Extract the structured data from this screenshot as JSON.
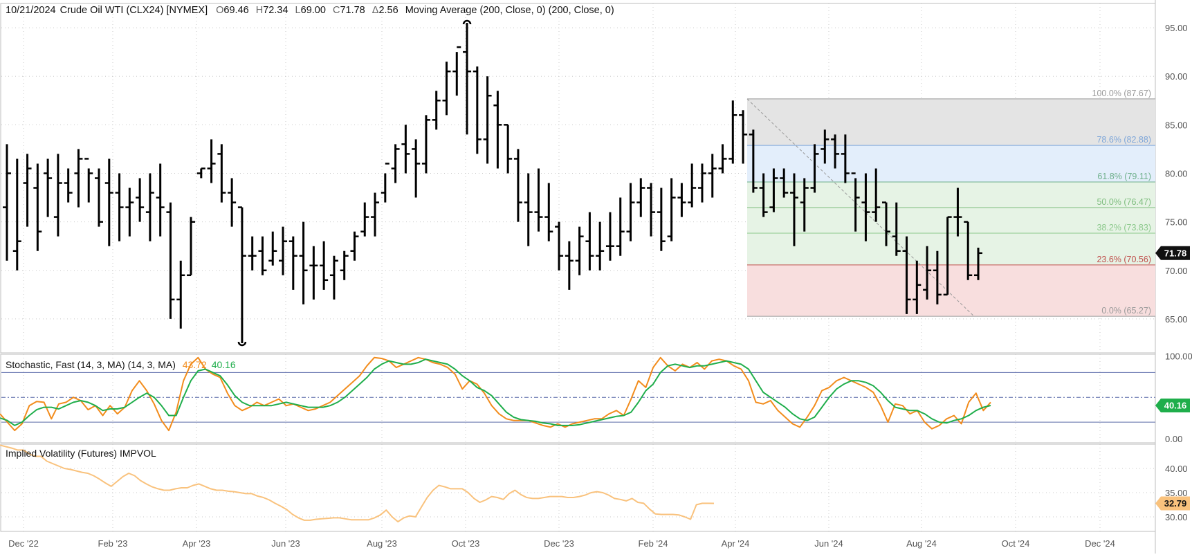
{
  "header": {
    "date": "10/21/2024",
    "symbol": "Crude Oil WTI (CLX24) [NYMEX]",
    "ohlc": [
      {
        "label": "O",
        "value": "69.46"
      },
      {
        "label": "H",
        "value": "72.34"
      },
      {
        "label": "L",
        "value": "69.00"
      },
      {
        "label": "C",
        "value": "71.78"
      },
      {
        "label": "Δ",
        "value": "2.56"
      }
    ],
    "study": "Moving Average (200, Close, 0)  (200, Close, 0)"
  },
  "colors": {
    "bars": "#000000",
    "k_line": "#f28c1c",
    "d_line": "#1fae4b",
    "iv_line": "#f9c27d",
    "grid": "#c8c8c8",
    "fib_high_zone": "#e4e4e4",
    "fib_786_zone": "#e3eefb",
    "fib_mid_zone": "#e6f3e5",
    "fib_low_zone": "#f8dede",
    "price_badge": "#111111",
    "d_badge": "#1fae4b",
    "iv_badge": "#f9c27d"
  },
  "chart_data": [
    {
      "type": "ohlc",
      "name": "price",
      "x_labels": [
        "Dec '22",
        "Feb '23",
        "Apr '23",
        "Jun '23",
        "Aug '23",
        "Oct '23",
        "Dec '23",
        "Feb '24",
        "Apr '24",
        "Jun '24",
        "Aug '24",
        "Oct '24",
        "Dec '24"
      ],
      "y_ticks": [
        "95.00",
        "90.00",
        "85.00",
        "80.00",
        "75.00",
        "70.00",
        "65.00"
      ],
      "ylim": [
        61.5,
        97.5
      ],
      "last_price": "71.78",
      "bars": [
        [
          76.5,
          83.0,
          71.0,
          80.0
        ],
        [
          72.0,
          81.5,
          70.0,
          73.0
        ],
        [
          79.0,
          82.0,
          74.5,
          80.5
        ],
        [
          78.5,
          81.0,
          72.0,
          74.0
        ],
        [
          80.0,
          81.5,
          75.5,
          79.5
        ],
        [
          75.5,
          82.0,
          73.5,
          79.0
        ],
        [
          79.0,
          80.5,
          77.0,
          78.0
        ],
        [
          80.0,
          82.5,
          76.5,
          81.5
        ],
        [
          81.5,
          80.5,
          77.0,
          80.0
        ],
        [
          79.5,
          80.5,
          74.5,
          75.0
        ],
        [
          79.0,
          81.5,
          72.5,
          78.0
        ],
        [
          78.0,
          80.0,
          73.0,
          76.5
        ],
        [
          76.5,
          78.5,
          73.5,
          77.0
        ],
        [
          77.5,
          79.5,
          75.0,
          76.5
        ],
        [
          76.0,
          80.0,
          73.0,
          78.0
        ],
        [
          77.5,
          81.0,
          73.5,
          76.5
        ],
        [
          76.0,
          77.0,
          65.0,
          67.0
        ],
        [
          67.0,
          71.0,
          64.0,
          69.5
        ],
        [
          69.5,
          75.5,
          69.5,
          75.0
        ],
        [
          80.0,
          80.5,
          79.5,
          80.5
        ],
        [
          80.5,
          83.5,
          79.0,
          81.0
        ],
        [
          82.0,
          83.0,
          77.0,
          78.0
        ],
        [
          78.0,
          79.5,
          74.5,
          77.0
        ],
        [
          76.5,
          76.5,
          62.5,
          71.5
        ],
        [
          71.5,
          73.5,
          70.0,
          71.5
        ],
        [
          72.0,
          73.5,
          69.5,
          70.0
        ],
        [
          71.0,
          74.0,
          70.5,
          72.0
        ],
        [
          71.0,
          74.5,
          69.5,
          73.0
        ],
        [
          73.0,
          73.5,
          68.0,
          71.5
        ],
        [
          71.5,
          75.0,
          66.5,
          70.0
        ],
        [
          70.5,
          72.5,
          67.0,
          70.5
        ],
        [
          70.5,
          73.0,
          68.0,
          69.0
        ],
        [
          69.5,
          71.5,
          67.0,
          71.0
        ],
        [
          70.0,
          72.0,
          69.0,
          71.5
        ],
        [
          72.0,
          74.0,
          71.0,
          73.5
        ],
        [
          74.0,
          77.0,
          73.5,
          75.5
        ],
        [
          75.5,
          78.0,
          73.5,
          77.0
        ],
        [
          78.0,
          80.0,
          77.0,
          81.0
        ],
        [
          80.5,
          83.0,
          79.0,
          82.5
        ],
        [
          83.0,
          85.0,
          80.0,
          82.0
        ],
        [
          82.5,
          83.5,
          77.5,
          81.0
        ],
        [
          81.0,
          86.0,
          80.0,
          85.5
        ],
        [
          85.5,
          88.5,
          84.5,
          87.5
        ],
        [
          87.5,
          91.5,
          86.0,
          90.5
        ],
        [
          90.5,
          92.5,
          88.0,
          93.0
        ],
        [
          92.5,
          95.5,
          84.0,
          90.5
        ],
        [
          90.5,
          91.0,
          82.0,
          83.5
        ],
        [
          83.5,
          90.0,
          81.0,
          88.0
        ],
        [
          87.0,
          88.5,
          80.5,
          85.0
        ],
        [
          85.0,
          85.0,
          80.0,
          81.5
        ],
        [
          81.5,
          82.5,
          75.0,
          77.0
        ],
        [
          77.0,
          80.0,
          72.5,
          76.0
        ],
        [
          76.0,
          80.5,
          74.0,
          75.5
        ],
        [
          75.5,
          79.0,
          73.0,
          74.0
        ],
        [
          74.5,
          75.0,
          70.0,
          71.5
        ],
        [
          71.5,
          73.0,
          68.0,
          71.0
        ],
        [
          71.0,
          74.5,
          69.5,
          73.5
        ],
        [
          73.0,
          76.0,
          70.0,
          71.5
        ],
        [
          71.5,
          75.0,
          70.0,
          72.0
        ],
        [
          72.5,
          76.0,
          71.0,
          72.5
        ],
        [
          72.5,
          77.5,
          71.5,
          74.0
        ],
        [
          74.0,
          79.0,
          73.0,
          77.0
        ],
        [
          77.0,
          79.5,
          75.5,
          78.5
        ],
        [
          78.5,
          79.0,
          73.5,
          76.0
        ],
        [
          76.0,
          78.5,
          72.0,
          73.0
        ],
        [
          73.5,
          79.5,
          73.0,
          77.5
        ],
        [
          77.5,
          79.0,
          75.5,
          77.0
        ],
        [
          77.0,
          81.0,
          76.5,
          78.5
        ],
        [
          78.5,
          81.0,
          77.0,
          80.0
        ],
        [
          80.0,
          82.0,
          77.5,
          80.5
        ],
        [
          80.5,
          83.0,
          80.0,
          81.5
        ],
        [
          81.5,
          87.5,
          81.0,
          86.0
        ],
        [
          86.0,
          86.5,
          81.0,
          84.0
        ],
        [
          84.0,
          84.5,
          78.0,
          78.5
        ],
        [
          78.5,
          80.0,
          75.5,
          76.0
        ],
        [
          76.5,
          80.5,
          76.0,
          79.5
        ],
        [
          79.5,
          80.5,
          77.5,
          78.0
        ],
        [
          78.0,
          80.0,
          72.5,
          77.5
        ],
        [
          77.0,
          79.5,
          74.0,
          78.5
        ],
        [
          78.5,
          83.0,
          78.0,
          82.0
        ],
        [
          82.5,
          84.5,
          81.0,
          83.5
        ],
        [
          83.5,
          84.0,
          80.5,
          82.0
        ],
        [
          82.0,
          84.0,
          79.0,
          80.0
        ],
        [
          80.0,
          79.5,
          74.0,
          77.5
        ],
        [
          77.0,
          80.0,
          73.0,
          76.0
        ],
        [
          76.0,
          80.5,
          75.0,
          76.5
        ],
        [
          77.0,
          77.0,
          72.5,
          74.0
        ],
        [
          73.5,
          77.0,
          71.5,
          72.0
        ],
        [
          72.0,
          73.5,
          65.5,
          67.0
        ],
        [
          67.0,
          71.0,
          65.5,
          68.5
        ],
        [
          68.0,
          72.5,
          67.0,
          70.0
        ],
        [
          70.0,
          72.0,
          66.5,
          67.5
        ],
        [
          67.5,
          75.5,
          67.5,
          75.5
        ],
        [
          75.5,
          78.5,
          73.5,
          75.5
        ],
        [
          75.0,
          75.0,
          69.0,
          69.5
        ],
        [
          69.5,
          72.34,
          69.0,
          71.78
        ]
      ],
      "fibonacci": [
        {
          "label": "100.0% (87.67)",
          "value": 87.67,
          "color": "#9a9a9a"
        },
        {
          "label": "78.6% (82.88)",
          "value": 82.88,
          "color": "#7fa7d9"
        },
        {
          "label": "61.8% (79.11)",
          "value": 79.11,
          "color": "#6daf8a"
        },
        {
          "label": "50.0% (76.47)",
          "value": 76.47,
          "color": "#7dbd7d"
        },
        {
          "label": "38.2% (73.83)",
          "value": 73.83,
          "color": "#8cc98c"
        },
        {
          "label": "23.6% (70.56)",
          "value": 70.56,
          "color": "#c0504d"
        },
        {
          "label": "0.0% (65.27)",
          "value": 65.27,
          "color": "#9a9a9a"
        }
      ]
    },
    {
      "type": "line",
      "name": "stochastic",
      "title": "Stochastic, Fast (14, 3, MA)  (14, 3, MA)",
      "k_value": "43.72",
      "d_value": "40.16",
      "y_ticks": [
        "100.00",
        "0.00"
      ],
      "ylim": [
        -5,
        102
      ],
      "levels": [
        80,
        50,
        20
      ],
      "series": [
        {
          "name": "%K",
          "values": [
            30,
            20,
            10,
            18,
            40,
            45,
            44,
            24,
            42,
            44,
            50,
            46,
            35,
            40,
            28,
            40,
            30,
            38,
            58,
            70,
            58,
            42,
            22,
            10,
            32,
            70,
            90,
            98,
            84,
            78,
            74,
            55,
            40,
            34,
            38,
            44,
            40,
            44,
            48,
            40,
            42,
            38,
            34,
            36,
            40,
            44,
            52,
            60,
            68,
            76,
            88,
            98,
            97,
            94,
            86,
            90,
            94,
            98,
            96,
            92,
            90,
            86,
            78,
            60,
            70,
            66,
            55,
            40,
            30,
            24,
            22,
            22,
            22,
            19,
            16,
            14,
            18,
            14,
            18,
            20,
            22,
            24,
            24,
            30,
            34,
            28,
            48,
            70,
            62,
            86,
            98,
            88,
            82,
            90,
            86,
            92,
            84,
            94,
            96,
            94,
            88,
            84,
            70,
            44,
            42,
            46,
            34,
            26,
            18,
            14,
            26,
            40,
            58,
            62,
            70,
            74,
            70,
            66,
            62,
            56,
            40,
            20,
            42,
            40,
            30,
            34,
            20,
            12,
            16,
            24,
            28,
            18,
            44,
            55,
            34,
            44
          ]
        },
        {
          "name": "%D",
          "values": [
            25,
            22,
            16,
            20,
            28,
            35,
            38,
            38,
            36,
            40,
            44,
            46,
            44,
            40,
            34,
            36,
            36,
            38,
            44,
            50,
            55,
            50,
            40,
            28,
            28,
            50,
            70,
            82,
            84,
            80,
            76,
            65,
            52,
            44,
            40,
            40,
            40,
            40,
            42,
            44,
            42,
            40,
            38,
            38,
            38,
            40,
            44,
            50,
            58,
            66,
            74,
            84,
            90,
            94,
            92,
            90,
            90,
            92,
            96,
            94,
            92,
            90,
            84,
            76,
            70,
            62,
            58,
            52,
            42,
            32,
            26,
            23,
            22,
            21,
            19,
            18,
            16,
            16,
            16,
            17,
            19,
            21,
            23,
            25,
            27,
            28,
            32,
            44,
            58,
            66,
            80,
            88,
            90,
            88,
            86,
            88,
            88,
            90,
            92,
            94,
            92,
            90,
            84,
            70,
            56,
            50,
            44,
            38,
            30,
            24,
            22,
            26,
            38,
            50,
            60,
            66,
            70,
            70,
            68,
            64,
            56,
            46,
            38,
            36,
            34,
            34,
            30,
            24,
            20,
            19,
            22,
            24,
            28,
            34,
            38,
            40.16
          ]
        }
      ]
    },
    {
      "type": "line",
      "name": "implied_volatility",
      "title": "Implied Volatility (Futures)  IMPVOL",
      "last_value": "32.79",
      "y_ticks": [
        "40.00",
        "35.00",
        "30.00"
      ],
      "ylim": [
        27.0,
        45.0
      ],
      "series": [
        {
          "name": "IMPVOL",
          "values": [
            44.8,
            44.5,
            44.2,
            43.8,
            43.8,
            43.0,
            42.5,
            42.5,
            41.5,
            41.0,
            40.5,
            40.0,
            39.8,
            39.5,
            39.2,
            39.0,
            38.5,
            37.8,
            37.0,
            36.3,
            37.3,
            38.3,
            39.0,
            38.5,
            37.5,
            36.8,
            36.2,
            35.8,
            35.5,
            35.5,
            35.8,
            36.0,
            36.0,
            36.5,
            36.8,
            36.3,
            35.8,
            35.5,
            35.5,
            35.3,
            35.2,
            35.0,
            34.8,
            34.8,
            34.3,
            34.0,
            33.5,
            32.8,
            32.2,
            31.5,
            30.5,
            29.8,
            29.3,
            29.3,
            29.5,
            29.6,
            29.7,
            29.8,
            29.8,
            29.6,
            29.4,
            29.4,
            29.4,
            29.4,
            29.8,
            30.4,
            31.4,
            30.0,
            29.0,
            29.8,
            30.2,
            30.0,
            32.0,
            34.0,
            35.5,
            36.5,
            36.2,
            35.8,
            35.8,
            35.8,
            35.0,
            33.8,
            33.0,
            33.5,
            34.2,
            34.0,
            33.6,
            34.8,
            35.5,
            34.6,
            34.0,
            33.8,
            33.8,
            34.0,
            34.2,
            34.2,
            34.2,
            34.0,
            34.0,
            34.2,
            34.5,
            35.0,
            35.2,
            35.0,
            34.5,
            33.8,
            33.6,
            33.3,
            33.8,
            33.0,
            32.8,
            31.6,
            30.6,
            30.5,
            30.5,
            30.5,
            30.4,
            30.0,
            29.5,
            32.5,
            32.8,
            32.8,
            32.79
          ]
        }
      ]
    }
  ]
}
